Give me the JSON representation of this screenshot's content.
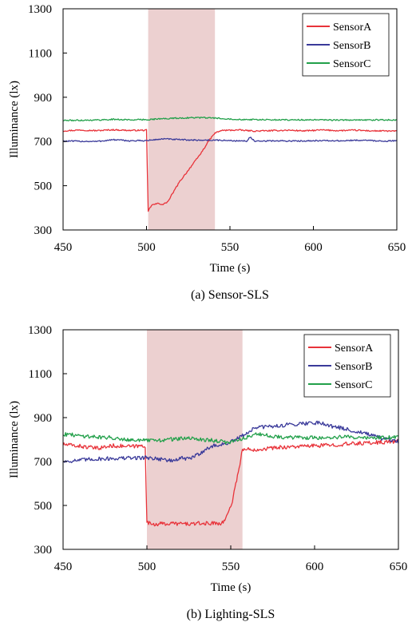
{
  "chart_data": [
    {
      "type": "line",
      "title": "",
      "caption": "(a) Sensor-SLS",
      "xlabel": "Time (s)",
      "ylabel": "Illuminance (lx)",
      "xlim": [
        450,
        650
      ],
      "ylim": [
        300,
        1300
      ],
      "xticks": [
        "450",
        "500",
        "550",
        "600",
        "650"
      ],
      "yticks": [
        "300",
        "500",
        "700",
        "900",
        "1100",
        "1300"
      ],
      "highlight": {
        "x_start": 501,
        "x_end": 541,
        "color": "#ecd0d0"
      },
      "legend_position": "top-right",
      "series": [
        {
          "name": "SensorA",
          "color": "#e8333a",
          "style": "noisy",
          "points": [
            [
              450,
              748
            ],
            [
              460,
              752
            ],
            [
              470,
              749
            ],
            [
              480,
              753
            ],
            [
              490,
              750
            ],
            [
              500,
              751
            ],
            [
              501,
              385
            ],
            [
              503,
              412
            ],
            [
              507,
              420
            ],
            [
              510,
              415
            ],
            [
              513,
              430
            ],
            [
              516,
              470
            ],
            [
              520,
              520
            ],
            [
              524,
              560
            ],
            [
              528,
              600
            ],
            [
              532,
              640
            ],
            [
              535,
              675
            ],
            [
              538,
              710
            ],
            [
              541,
              738
            ],
            [
              545,
              750
            ],
            [
              555,
              752
            ],
            [
              565,
              747
            ],
            [
              575,
              749
            ],
            [
              585,
              751
            ],
            [
              595,
              748
            ],
            [
              605,
              752
            ],
            [
              615,
              749
            ],
            [
              625,
              751
            ],
            [
              635,
              748
            ],
            [
              650,
              747
            ]
          ]
        },
        {
          "name": "SensorB",
          "color": "#3a3a9a",
          "style": "noisy",
          "points": [
            [
              450,
              702
            ],
            [
              470,
              700
            ],
            [
              480,
              708
            ],
            [
              490,
              703
            ],
            [
              500,
              704
            ],
            [
              510,
              712
            ],
            [
              520,
              708
            ],
            [
              530,
              706
            ],
            [
              541,
              706
            ],
            [
              550,
              704
            ],
            [
              560,
              702
            ],
            [
              562,
              720
            ],
            [
              565,
              700
            ],
            [
              575,
              703
            ],
            [
              590,
              702
            ],
            [
              600,
              704
            ],
            [
              615,
              703
            ],
            [
              630,
              706
            ],
            [
              640,
              702
            ],
            [
              650,
              703
            ]
          ]
        },
        {
          "name": "SensorC",
          "color": "#22a04a",
          "style": "noisy",
          "points": [
            [
              450,
              795
            ],
            [
              470,
              797
            ],
            [
              480,
              800
            ],
            [
              490,
              798
            ],
            [
              500,
              799
            ],
            [
              510,
              803
            ],
            [
              520,
              806
            ],
            [
              530,
              808
            ],
            [
              541,
              806
            ],
            [
              555,
              800
            ],
            [
              570,
              798
            ],
            [
              590,
              798
            ],
            [
              610,
              797
            ],
            [
              630,
              797
            ],
            [
              650,
              798
            ]
          ]
        }
      ]
    },
    {
      "type": "line",
      "title": "",
      "caption": "(b) Lighting-SLS",
      "xlabel": "Time (s)",
      "ylabel": "Illuminance (lx)",
      "xlim": [
        450,
        650
      ],
      "ylim": [
        300,
        1300
      ],
      "xticks": [
        "450",
        "500",
        "550",
        "600",
        "650"
      ],
      "yticks": [
        "300",
        "500",
        "700",
        "900",
        "1100",
        "1300"
      ],
      "highlight": {
        "x_start": 500,
        "x_end": 557,
        "color": "#ecd0d0"
      },
      "legend_position": "top-right",
      "series": [
        {
          "name": "SensorA",
          "color": "#e8333a",
          "style": "noisy",
          "points": [
            [
              450,
              778
            ],
            [
              460,
              770
            ],
            [
              470,
              760
            ],
            [
              480,
              772
            ],
            [
              490,
              768
            ],
            [
              499,
              772
            ],
            [
              500,
              420
            ],
            [
              505,
              415
            ],
            [
              515,
              418
            ],
            [
              525,
              416
            ],
            [
              535,
              418
            ],
            [
              545,
              420
            ],
            [
              547,
              440
            ],
            [
              551,
              520
            ],
            [
              553,
              600
            ],
            [
              555,
              670
            ],
            [
              557,
              755
            ],
            [
              565,
              755
            ],
            [
              580,
              765
            ],
            [
              595,
              770
            ],
            [
              610,
              775
            ],
            [
              625,
              782
            ],
            [
              640,
              788
            ],
            [
              650,
              792
            ]
          ]
        },
        {
          "name": "SensorB",
          "color": "#3a3a9a",
          "style": "noisy",
          "points": [
            [
              450,
              700
            ],
            [
              470,
              712
            ],
            [
              490,
              716
            ],
            [
              500,
              718
            ],
            [
              510,
              710
            ],
            [
              515,
              702
            ],
            [
              520,
              715
            ],
            [
              525,
              712
            ],
            [
              530,
              730
            ],
            [
              535,
              755
            ],
            [
              540,
              772
            ],
            [
              545,
              778
            ],
            [
              550,
              788
            ],
            [
              555,
              808
            ],
            [
              565,
              855
            ],
            [
              575,
              860
            ],
            [
              590,
              872
            ],
            [
              603,
              878
            ],
            [
              610,
              862
            ],
            [
              620,
              845
            ],
            [
              630,
              828
            ],
            [
              640,
              805
            ],
            [
              650,
              790
            ]
          ]
        },
        {
          "name": "SensorC",
          "color": "#22a04a",
          "style": "noisy",
          "points": [
            [
              450,
              825
            ],
            [
              460,
              818
            ],
            [
              470,
              812
            ],
            [
              480,
              808
            ],
            [
              490,
              800
            ],
            [
              500,
              795
            ],
            [
              510,
              798
            ],
            [
              520,
              805
            ],
            [
              530,
              803
            ],
            [
              540,
              796
            ],
            [
              548,
              786
            ],
            [
              555,
              800
            ],
            [
              565,
              825
            ],
            [
              575,
              815
            ],
            [
              590,
              808
            ],
            [
              605,
              808
            ],
            [
              620,
              812
            ],
            [
              635,
              808
            ],
            [
              650,
              810
            ]
          ]
        }
      ]
    }
  ]
}
